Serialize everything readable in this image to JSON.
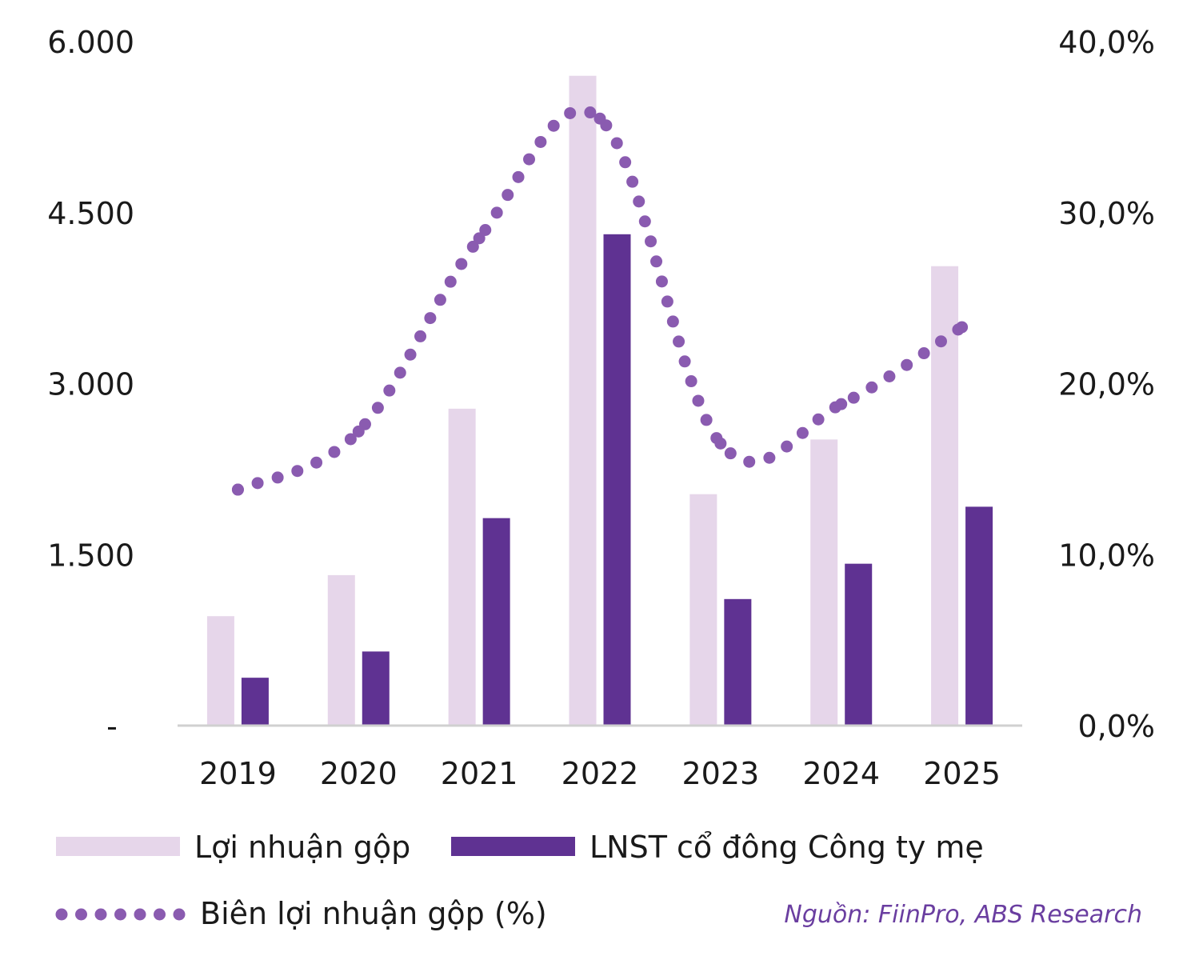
{
  "chart_data": {
    "type": "bar",
    "categories": [
      "2019",
      "2020",
      "2021",
      "2022",
      "2023",
      "2024",
      "2025"
    ],
    "series": [
      {
        "name": "Lợi nhuận gộp",
        "kind": "bar",
        "axis": "left",
        "color": "#e6d6ea",
        "values": [
          960,
          1320,
          2780,
          5700,
          2030,
          2510,
          4030
        ]
      },
      {
        "name": "LNST cổ đông Công ty mẹ",
        "kind": "bar",
        "axis": "left",
        "color": "#5f3292",
        "values": [
          420,
          650,
          1820,
          4310,
          1110,
          1420,
          1920
        ]
      },
      {
        "name": "Biên lợi nhuận gộp (%)",
        "kind": "line-dotted",
        "axis": "right",
        "color": "#8a5bb0",
        "values": [
          13.8,
          17.2,
          28.5,
          35.5,
          16.5,
          18.8,
          23.3
        ]
      }
    ],
    "left_axis": {
      "min": 0,
      "max": 6000,
      "ticks": [
        0,
        1500,
        3000,
        4500,
        6000
      ],
      "tick_labels": [
        "-",
        "1.500",
        "3.000",
        "4.500",
        "6.000"
      ]
    },
    "right_axis": {
      "min": 0,
      "max": 40,
      "ticks": [
        0,
        10,
        20,
        30,
        40
      ],
      "tick_labels": [
        "0,0%",
        "10,0%",
        "20,0%",
        "30,0%",
        "40,0%"
      ]
    },
    "title": "",
    "xlabel": "",
    "ylabel": "",
    "grid": false,
    "legend_position": "bottom",
    "axis_line_color": "#d0d0d0",
    "source": "Nguồn: FiinPro, ABS Research",
    "source_color": "#6a3ea0"
  }
}
